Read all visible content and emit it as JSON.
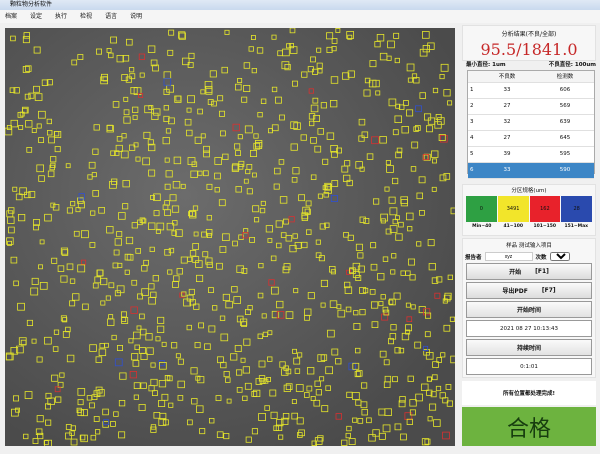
{
  "window": {
    "title": "颗粒物分析软件"
  },
  "menu": [
    "档案",
    "设定",
    "执行",
    "检视",
    "语言",
    "说明"
  ],
  "results": {
    "title": "分析结果(不良/全部)",
    "value": "95.5/1841.0",
    "min_diameter": "最小直径: 1um",
    "bad_diameter": "不良直径: 100um"
  },
  "table": {
    "headers": [
      "不良数",
      "检测数"
    ],
    "rows": [
      [
        "1",
        "33",
        "606"
      ],
      [
        "2",
        "27",
        "569"
      ],
      [
        "3",
        "32",
        "639"
      ],
      [
        "4",
        "27",
        "645"
      ],
      [
        "5",
        "39",
        "595"
      ],
      [
        "6",
        "33",
        "590"
      ]
    ],
    "selected_row": 6
  },
  "zones": {
    "title": "分区规格(um)",
    "blocks": [
      {
        "value": "0",
        "color": "#2ea043"
      },
      {
        "value": "3491",
        "color": "#f2e52a"
      },
      {
        "value": "162",
        "color": "#e8222b"
      },
      {
        "value": "28",
        "color": "#2a4aae"
      }
    ],
    "labels": [
      "Min~40",
      "41~100",
      "101~150",
      "151~Max"
    ]
  },
  "sample": {
    "title": "样品 测试输入项目",
    "reporter_label": "报告者",
    "reporter_value": "xyz",
    "count_label": "次数",
    "count_value": "2",
    "start_button": "开始",
    "start_key": "[F1]",
    "export_button": "导出PDF",
    "export_key": "[F7]",
    "start_time_label": "开始时间",
    "start_time": "2021 08 27 10:13:43",
    "duration_label": "持续时间",
    "duration": "0:1:01"
  },
  "message": "所有位置都处理完成!",
  "verdict": {
    "text": "合格",
    "color": "#6db33f"
  },
  "marker_colors": {
    "normal": "#e6e62a",
    "bad": "#d83030",
    "other": "#3050d0"
  }
}
